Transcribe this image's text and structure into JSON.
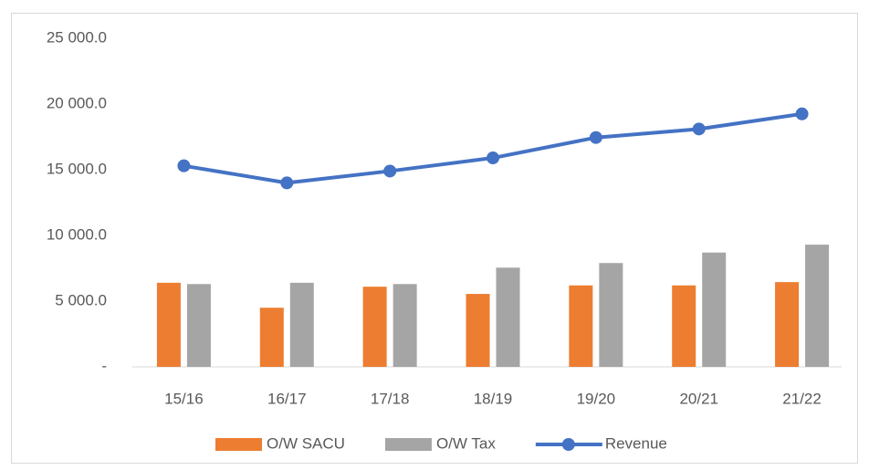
{
  "chart_data": {
    "type": "bar-line",
    "categories": [
      "15/16",
      "16/17",
      "17/18",
      "18/19",
      "19/20",
      "20/21",
      "21/22"
    ],
    "series": [
      {
        "name": "O/W SACU",
        "type": "bar",
        "color": "#ed7d31",
        "values": [
          6400,
          4500,
          6100,
          5550,
          6200,
          6200,
          6450
        ]
      },
      {
        "name": "O/W Tax",
        "type": "bar",
        "color": "#a5a5a5",
        "values": [
          6300,
          6400,
          6300,
          7550,
          7900,
          8700,
          9300
        ]
      },
      {
        "name": "Revenue",
        "type": "line",
        "color": "#4472c4",
        "values": [
          15300,
          14000,
          14900,
          15900,
          17450,
          18100,
          19250
        ]
      }
    ],
    "ylim": [
      0,
      25000
    ],
    "yticks": [
      {
        "value": 0,
        "label": "-"
      },
      {
        "value": 5000,
        "label": "5 000.0"
      },
      {
        "value": 10000,
        "label": "10 000.0"
      },
      {
        "value": 15000,
        "label": "15 000.0"
      },
      {
        "value": 20000,
        "label": "20 000.0"
      },
      {
        "value": 25000,
        "label": "25 000.0"
      }
    ],
    "grid": false,
    "legend": "bottom"
  }
}
